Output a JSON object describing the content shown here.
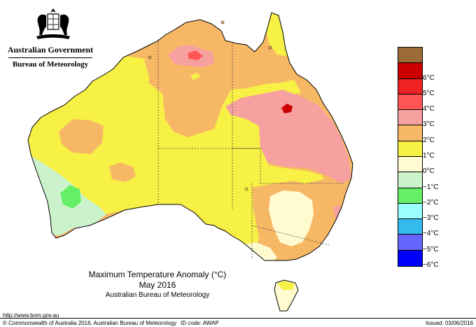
{
  "header": {
    "government": "Australian Government",
    "bureau": "Bureau of Meteorology"
  },
  "map": {
    "title": "Maximum Temperature Anomaly (°C)",
    "period": "May 2016",
    "source": "Australian Bureau of Meteorology",
    "region": "Australia"
  },
  "legend": {
    "items": [
      {
        "label": "",
        "color": "#9c6b35"
      },
      {
        "label": "6°C",
        "color": "#cc0000"
      },
      {
        "label": "5°C",
        "color": "#ee2222"
      },
      {
        "label": "4°C",
        "color": "#ff5555"
      },
      {
        "label": "3°C",
        "color": "#f7a0a0"
      },
      {
        "label": "2°C",
        "color": "#f7b866"
      },
      {
        "label": "1°C",
        "color": "#f7f045"
      },
      {
        "label": "0°C",
        "color": "#fffad0"
      },
      {
        "label": "−1°C",
        "color": "#ccf2cc"
      },
      {
        "label": "−2°C",
        "color": "#66ee66"
      },
      {
        "label": "−3°C",
        "color": "#99ffff"
      },
      {
        "label": "−4°C",
        "color": "#33bbee"
      },
      {
        "label": "−5°C",
        "color": "#6666ff"
      },
      {
        "label": "−6°C",
        "color": "#0000ff"
      }
    ]
  },
  "footer": {
    "url": "http://www.bom.gov.au",
    "copyright": "© Commonwealth of Australia 2016, Australian Bureau of Meteorology",
    "id_code": "ID code: AWAP",
    "issued": "Issued: 03/06/2016"
  }
}
